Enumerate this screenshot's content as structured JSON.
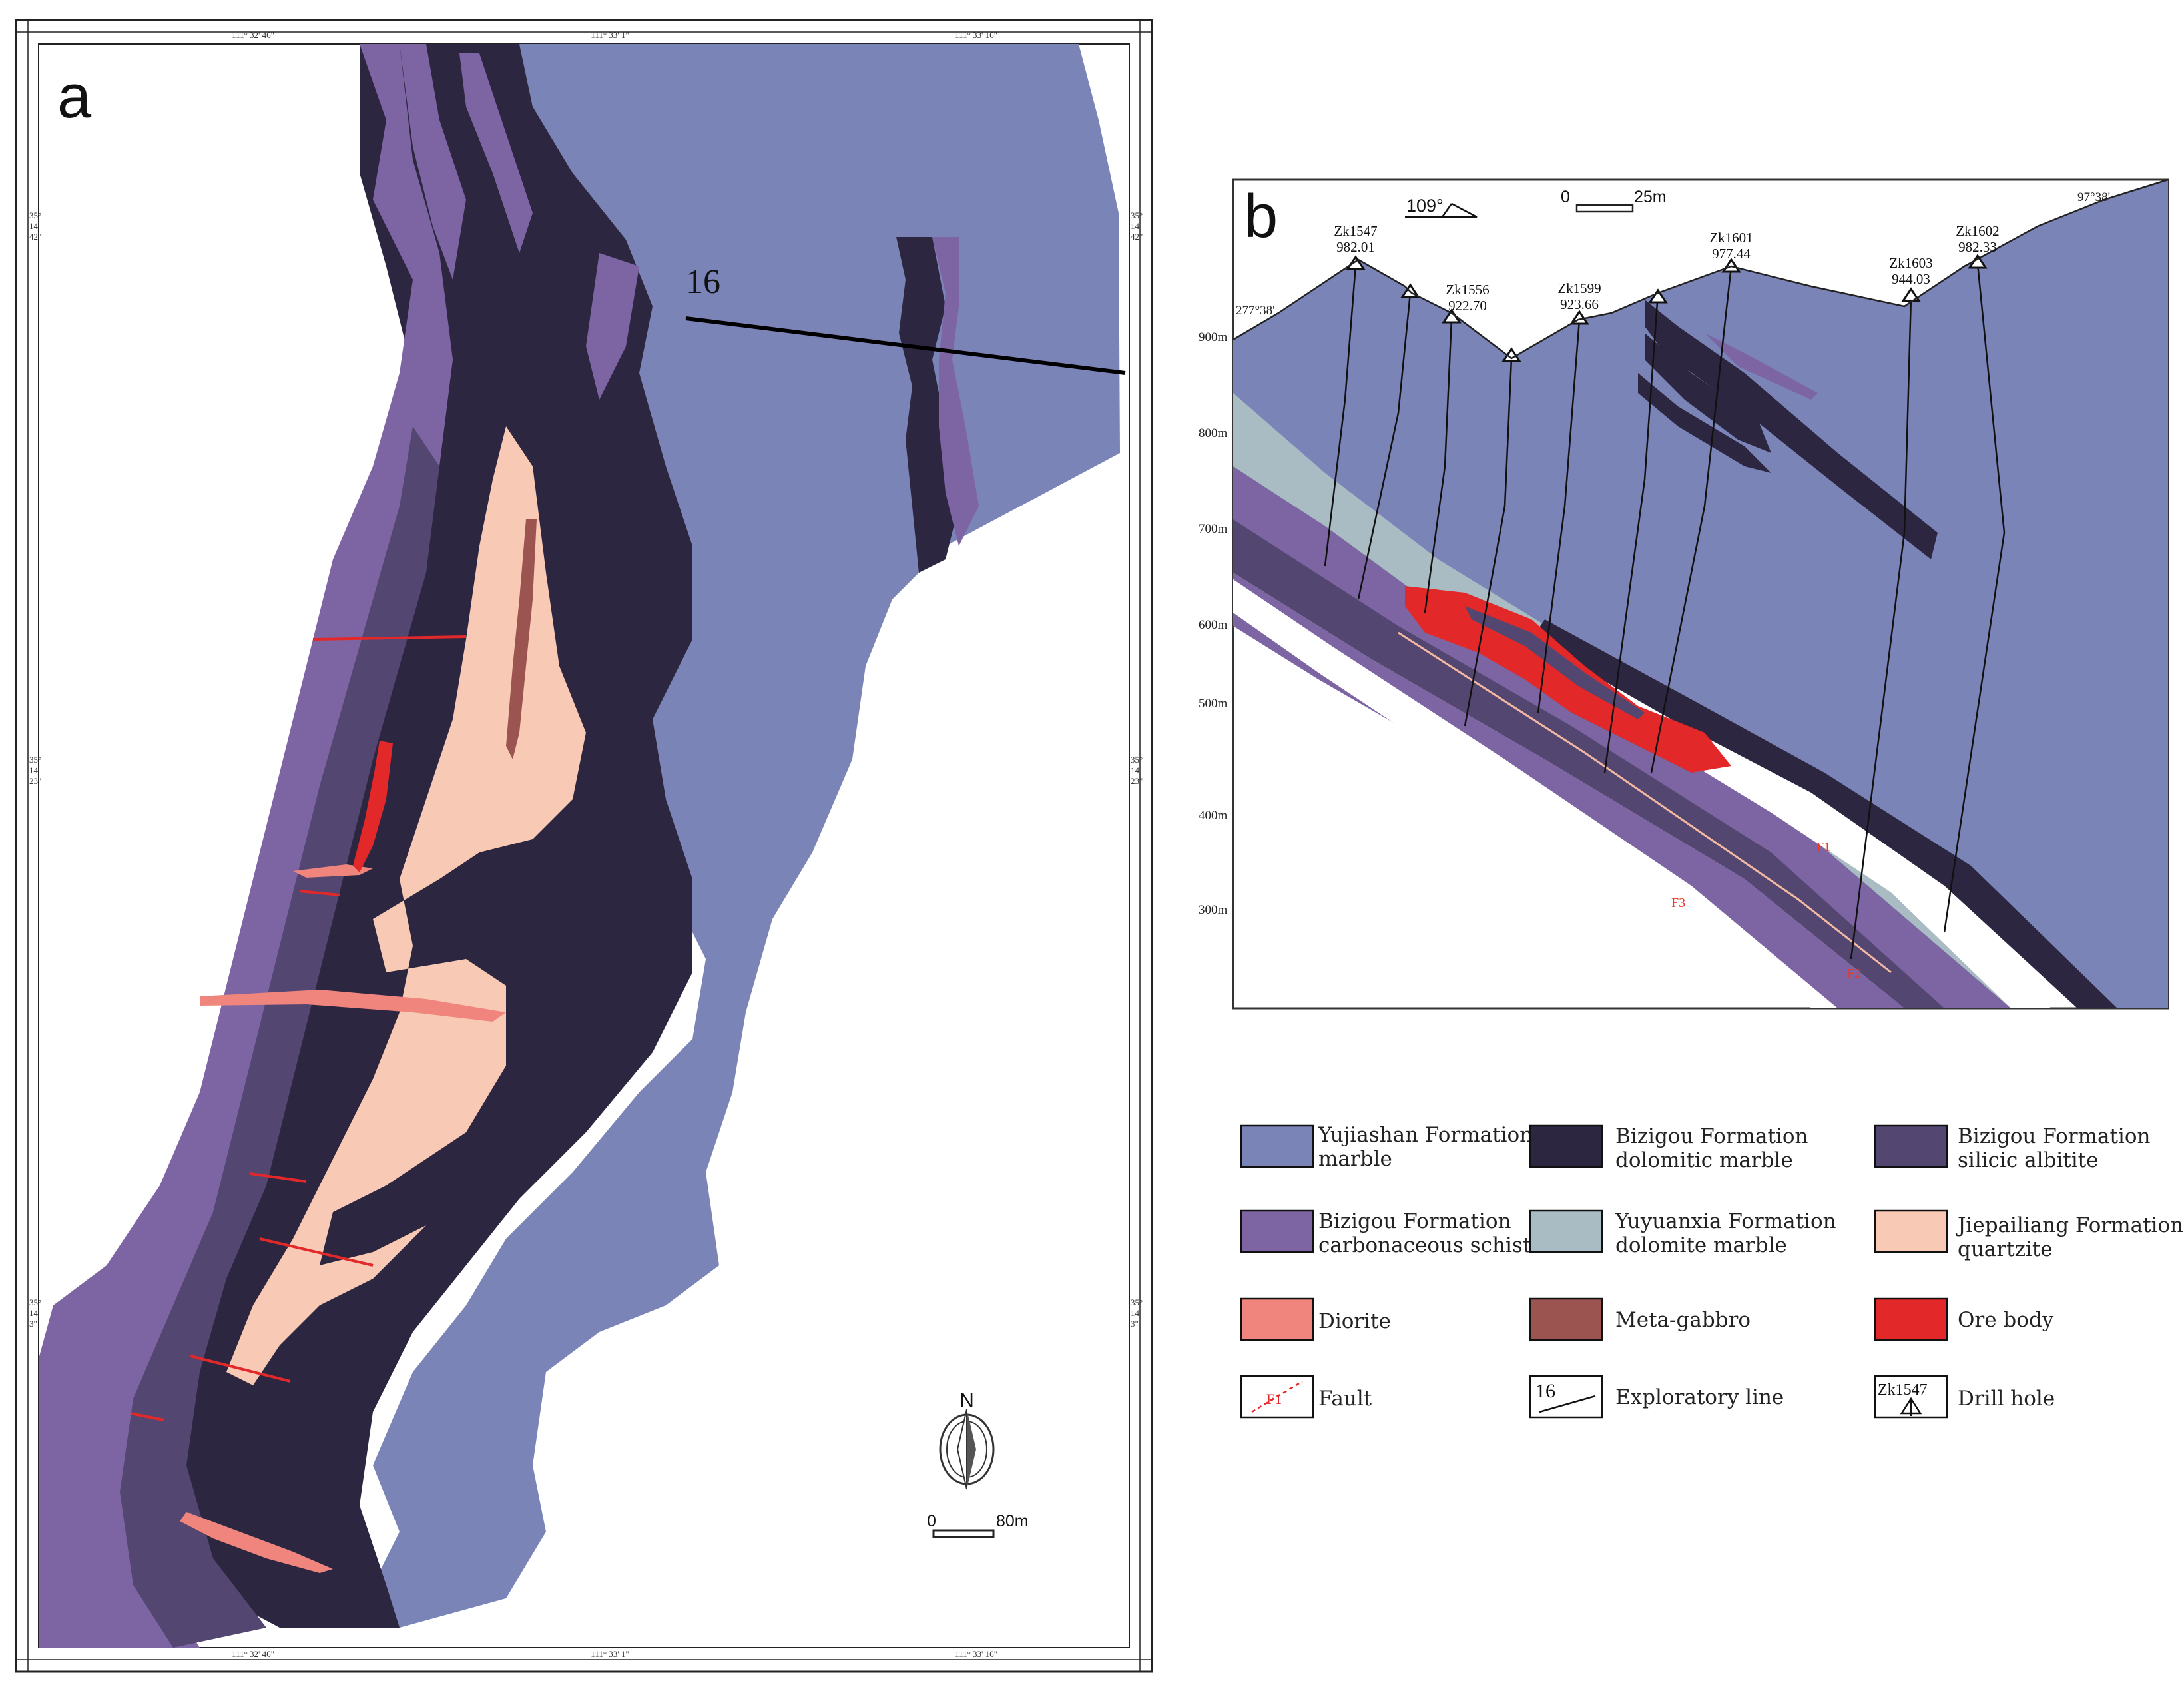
{
  "panel_a": {
    "label": "a",
    "coords_top": [
      "111° 32' 46\"",
      "111° 33' 1\"",
      "111° 33' 16\""
    ],
    "coords_bottom": [
      "111° 32' 46\"",
      "111° 33' 1\"",
      "111° 33' 16\""
    ],
    "coords_left": [
      [
        "35°",
        "14'",
        "42\""
      ],
      [
        "35°",
        "14'",
        "23\""
      ],
      [
        "35°",
        "14'",
        "3\""
      ]
    ],
    "coords_right": [
      [
        "35°",
        "14'",
        "42\""
      ],
      [
        "35°",
        "14'",
        "23\""
      ],
      [
        "35°",
        "14'",
        "3\""
      ]
    ],
    "exploratory_line_number": "16",
    "north_label": "N",
    "scale_start": "0",
    "scale_end": "80m"
  },
  "panel_b": {
    "label": "b",
    "azimuth_left": "277°38'",
    "azimuth_right": "97°38'",
    "direction": "109°",
    "scale_start": "0",
    "scale_end": "25m",
    "elevations": [
      "900m",
      "800m",
      "700m",
      "600m",
      "500m",
      "400m",
      "300m"
    ],
    "fault_labels": [
      "F1",
      "F2",
      "F3"
    ],
    "drill_holes": [
      {
        "name": "Zk1547",
        "elev": "982.01"
      },
      {
        "name": "Zk1556",
        "elev": "922.70"
      },
      {
        "name": "Zk1599",
        "elev": "923.66"
      },
      {
        "name": "Zk1601",
        "elev": "977.44"
      },
      {
        "name": "Zk1603",
        "elev": "944.03"
      },
      {
        "name": "Zk1602",
        "elev": "982.33"
      }
    ]
  },
  "legend": [
    {
      "id": "yujiashan",
      "lines": [
        "Yujiashan Formation",
        "marble"
      ],
      "color": "#7b84b7"
    },
    {
      "id": "bizigou-dolomitic",
      "lines": [
        "Bizigou Formation",
        "dolomitic marble"
      ],
      "color": "#2c2640"
    },
    {
      "id": "bizigou-albitite",
      "lines": [
        "Bizigou Formation",
        "silicic albitite"
      ],
      "color": "#534670"
    },
    {
      "id": "bizigou-schist",
      "lines": [
        "Bizigou Formation",
        "carbonaceous schist"
      ],
      "color": "#7d65a3"
    },
    {
      "id": "yuyuanxia",
      "lines": [
        "Yuyuanxia Formation",
        "dolomite marble"
      ],
      "color": "#a9bcc4"
    },
    {
      "id": "jiepailiang",
      "lines": [
        "Jiepailiang Formation",
        "quartzite"
      ],
      "color": "#f8c9b4"
    },
    {
      "id": "diorite",
      "lines": [
        "Diorite"
      ],
      "color": "#ef857d"
    },
    {
      "id": "meta-gabbro",
      "lines": [
        "Meta-gabbro"
      ],
      "color": "#9b5450"
    },
    {
      "id": "ore-body",
      "lines": [
        "Ore body"
      ],
      "color": "#e3282a"
    },
    {
      "id": "fault",
      "lines": [
        "Fault"
      ],
      "color": "#e3282a",
      "symbol_text": "F1"
    },
    {
      "id": "exploratory-line",
      "lines": [
        "Exploratory line"
      ],
      "color": "#000000",
      "symbol_text": "16"
    },
    {
      "id": "drill-hole",
      "lines": [
        "Drill hole"
      ],
      "color": "#000000",
      "symbol_text": "Zk1547"
    }
  ]
}
